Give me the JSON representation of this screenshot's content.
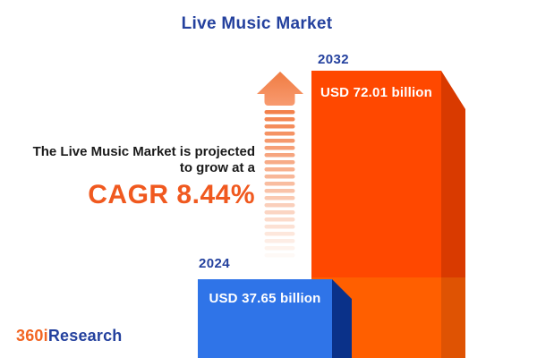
{
  "title": "Live Music Market",
  "annotation": {
    "line1": "The Live Music Market is projected",
    "line2": "to grow at a",
    "cagr": "CAGR 8.44%"
  },
  "bars": {
    "y2032": {
      "year": "2032",
      "value_label": "USD 72.01 billion"
    },
    "y2024": {
      "year": "2024",
      "value_label": "USD 37.65 billion"
    }
  },
  "logo": {
    "part1": "360i",
    "part2": "Research"
  },
  "arrow": {
    "stripe_count": 21
  },
  "colors": {
    "background": "#FFFFFF",
    "title_blue": "#24419E",
    "text_dark": "#1A1A1A",
    "cagr_orange": "#F0591F",
    "logo_orange": "#F26522",
    "logo_blue": "#24419E",
    "value_text": "#FFFFFF",
    "bar2032_face_top": "#FF4800",
    "bar2032_face_bottom": "#FF5F00",
    "bar2032_side_top": "#D93A00",
    "bar2032_side_bottom": "#DF5303",
    "bar2024_face": "#2F74E8",
    "bar2024_side": "#0A3189",
    "arrow_head_top": "#F07C42",
    "arrow_head_bottom": "#F89C72",
    "arrow_stripe": "#F3814B"
  },
  "chart_data": {
    "type": "bar",
    "categories": [
      "2024",
      "2032"
    ],
    "values": [
      37.65,
      72.01
    ],
    "unit": "USD billion",
    "value_labels": [
      "USD 37.65 billion",
      "USD 72.01 billion"
    ],
    "series_color_2024": "#2F74E8",
    "series_color_2032": "#FF4800",
    "title": "Live Music Market",
    "cagr_percent": 8.44,
    "annotation": "The Live Music Market is projected to grow at a CAGR 8.44%",
    "legend": "none",
    "grid": false,
    "source_brand": "360iResearch"
  }
}
